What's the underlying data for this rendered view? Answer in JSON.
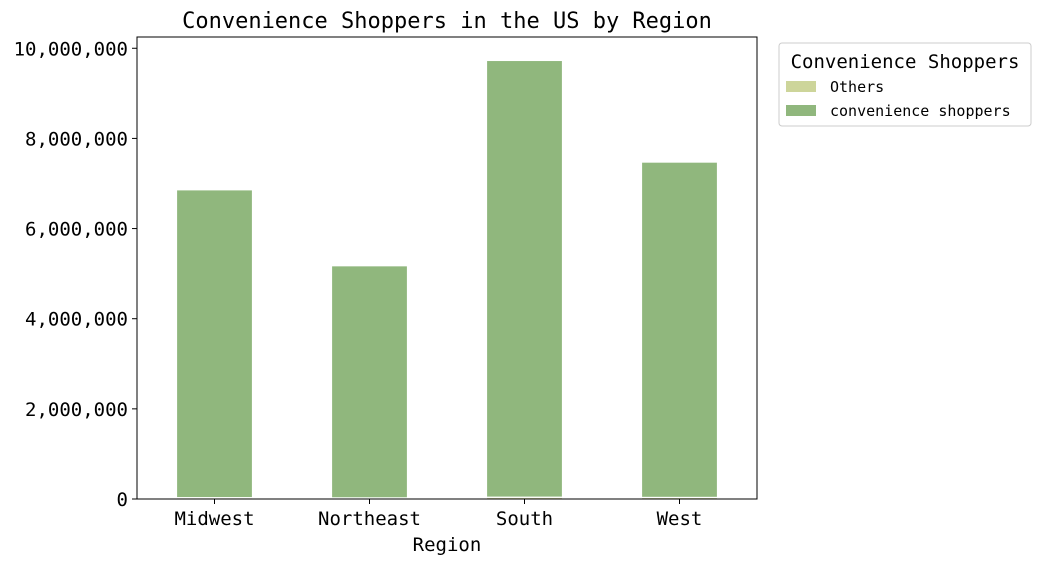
{
  "chart_data": {
    "type": "bar",
    "stacked": true,
    "title": "Convenience Shoppers in the US by Region",
    "xlabel": "Region",
    "ylabel": "",
    "categories": [
      "Midwest",
      "Northeast",
      "South",
      "West"
    ],
    "series": [
      {
        "name": "Others",
        "values": [
          30000,
          25000,
          40000,
          35000
        ],
        "color": "#cdd59a"
      },
      {
        "name": "convenience shoppers",
        "values": [
          6830000,
          5150000,
          9690000,
          7440000
        ],
        "color": "#90b77d"
      }
    ],
    "ylim": [
      0,
      10250000
    ],
    "yticks": [
      0,
      2000000,
      4000000,
      6000000,
      8000000,
      10000000
    ],
    "ytick_labels": [
      "0",
      "2,000,000",
      "4,000,000",
      "6,000,000",
      "8,000,000",
      "10,000,000"
    ],
    "grid": false,
    "legend": {
      "title": "Convenience Shoppers",
      "placement": "outside-top-right"
    }
  }
}
